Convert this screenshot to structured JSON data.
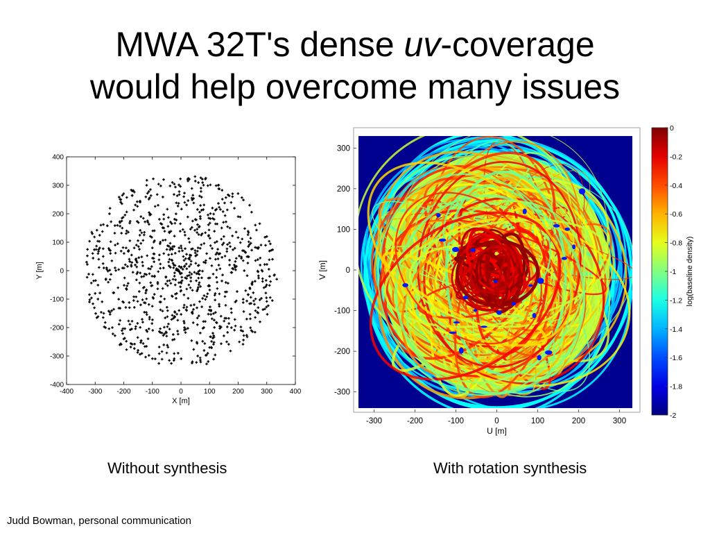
{
  "slide": {
    "title_part1": "MWA 32T's dense ",
    "title_italic": "uv",
    "title_part2": "-coverage",
    "title_line2": "would help overcome many issues",
    "caption_left": "Without synthesis",
    "caption_right": "With rotation synthesis",
    "credit": "Judd Bowman, personal communication"
  },
  "colors": {
    "scatter_marker": "#000000",
    "heatmap_background": "#00008f",
    "colormap": "jet"
  },
  "chart_data": [
    {
      "type": "scatter",
      "xlabel": "X [m]",
      "ylabel": "Y [m]",
      "xlim": [
        -400,
        400
      ],
      "ylim": [
        -400,
        400
      ],
      "xticks": [
        -400,
        -300,
        -200,
        -100,
        0,
        100,
        200,
        300,
        400
      ],
      "yticks": [
        -400,
        -300,
        -200,
        -100,
        0,
        100,
        200,
        300,
        400
      ],
      "grid": false,
      "marker": "+",
      "series": [
        {
          "description": "array layout: about 990 points filling a disk of radius ~340 m, densest at the center",
          "points": [
            [
              -330,
              30
            ],
            [
              -320,
              -110
            ],
            [
              -310,
              130
            ],
            [
              -300,
              -80
            ],
            [
              -290,
              60
            ],
            [
              -280,
              160
            ],
            [
              -270,
              -150
            ],
            [
              -260,
              10
            ],
            [
              -250,
              200
            ],
            [
              -240,
              -200
            ],
            [
              -230,
              90
            ],
            [
              -220,
              -60
            ],
            [
              -210,
              250
            ],
            [
              -200,
              -240
            ],
            [
              -190,
              140
            ],
            [
              -180,
              -130
            ],
            [
              -170,
              280
            ],
            [
              -160,
              20
            ],
            [
              -150,
              -280
            ],
            [
              -140,
              190
            ],
            [
              -130,
              -20
            ],
            [
              -120,
              300
            ],
            [
              -110,
              -170
            ],
            [
              -100,
              80
            ],
            [
              -90,
              -310
            ],
            [
              -80,
              230
            ],
            [
              -70,
              -90
            ],
            [
              -60,
              150
            ],
            [
              -50,
              -230
            ],
            [
              -40,
              40
            ],
            [
              -30,
              310
            ],
            [
              -20,
              -50
            ],
            [
              -10,
              -290
            ],
            [
              0,
              10
            ],
            [
              10,
              260
            ],
            [
              20,
              -140
            ],
            [
              30,
              100
            ],
            [
              40,
              -320
            ],
            [
              50,
              180
            ],
            [
              60,
              -10
            ],
            [
              70,
              290
            ],
            [
              80,
              -200
            ],
            [
              90,
              60
            ],
            [
              100,
              -270
            ],
            [
              110,
              220
            ],
            [
              120,
              -80
            ],
            [
              130,
              300
            ],
            [
              140,
              -160
            ],
            [
              150,
              120
            ],
            [
              160,
              -250
            ],
            [
              170,
              20
            ],
            [
              180,
              260
            ],
            [
              190,
              -110
            ],
            [
              200,
              190
            ],
            [
              210,
              -210
            ],
            [
              220,
              70
            ],
            [
              230,
              -170
            ],
            [
              240,
              230
            ],
            [
              250,
              -40
            ],
            [
              260,
              160
            ],
            [
              270,
              -130
            ],
            [
              280,
              90
            ],
            [
              290,
              -60
            ],
            [
              300,
              120
            ],
            [
              310,
              -20
            ],
            [
              320,
              40
            ],
            [
              335,
              -30
            ],
            [
              -5,
              -5
            ],
            [
              15,
              -25
            ],
            [
              -25,
              20
            ],
            [
              30,
              40
            ],
            [
              -40,
              -35
            ],
            [
              55,
              -10
            ],
            [
              -60,
              60
            ],
            [
              5,
              70
            ],
            [
              -15,
              -80
            ],
            [
              80,
              30
            ]
          ]
        }
      ]
    },
    {
      "type": "heatmap",
      "xlabel": "U [m]",
      "ylabel": "V [m]",
      "xlim": [
        -350,
        350
      ],
      "ylim": [
        -350,
        350
      ],
      "xticks": [
        -300,
        -200,
        -100,
        0,
        100,
        200,
        300
      ],
      "yticks": [
        -300,
        -200,
        -100,
        0,
        100,
        200,
        300
      ],
      "colorbar": {
        "label": "log(baseline density)",
        "min": -2,
        "max": 0,
        "ticks": [
          0,
          -0.2,
          -0.4,
          -0.6,
          -0.8,
          -1,
          -1.2,
          -1.4,
          -1.6,
          -1.8,
          -2
        ]
      }
    }
  ]
}
